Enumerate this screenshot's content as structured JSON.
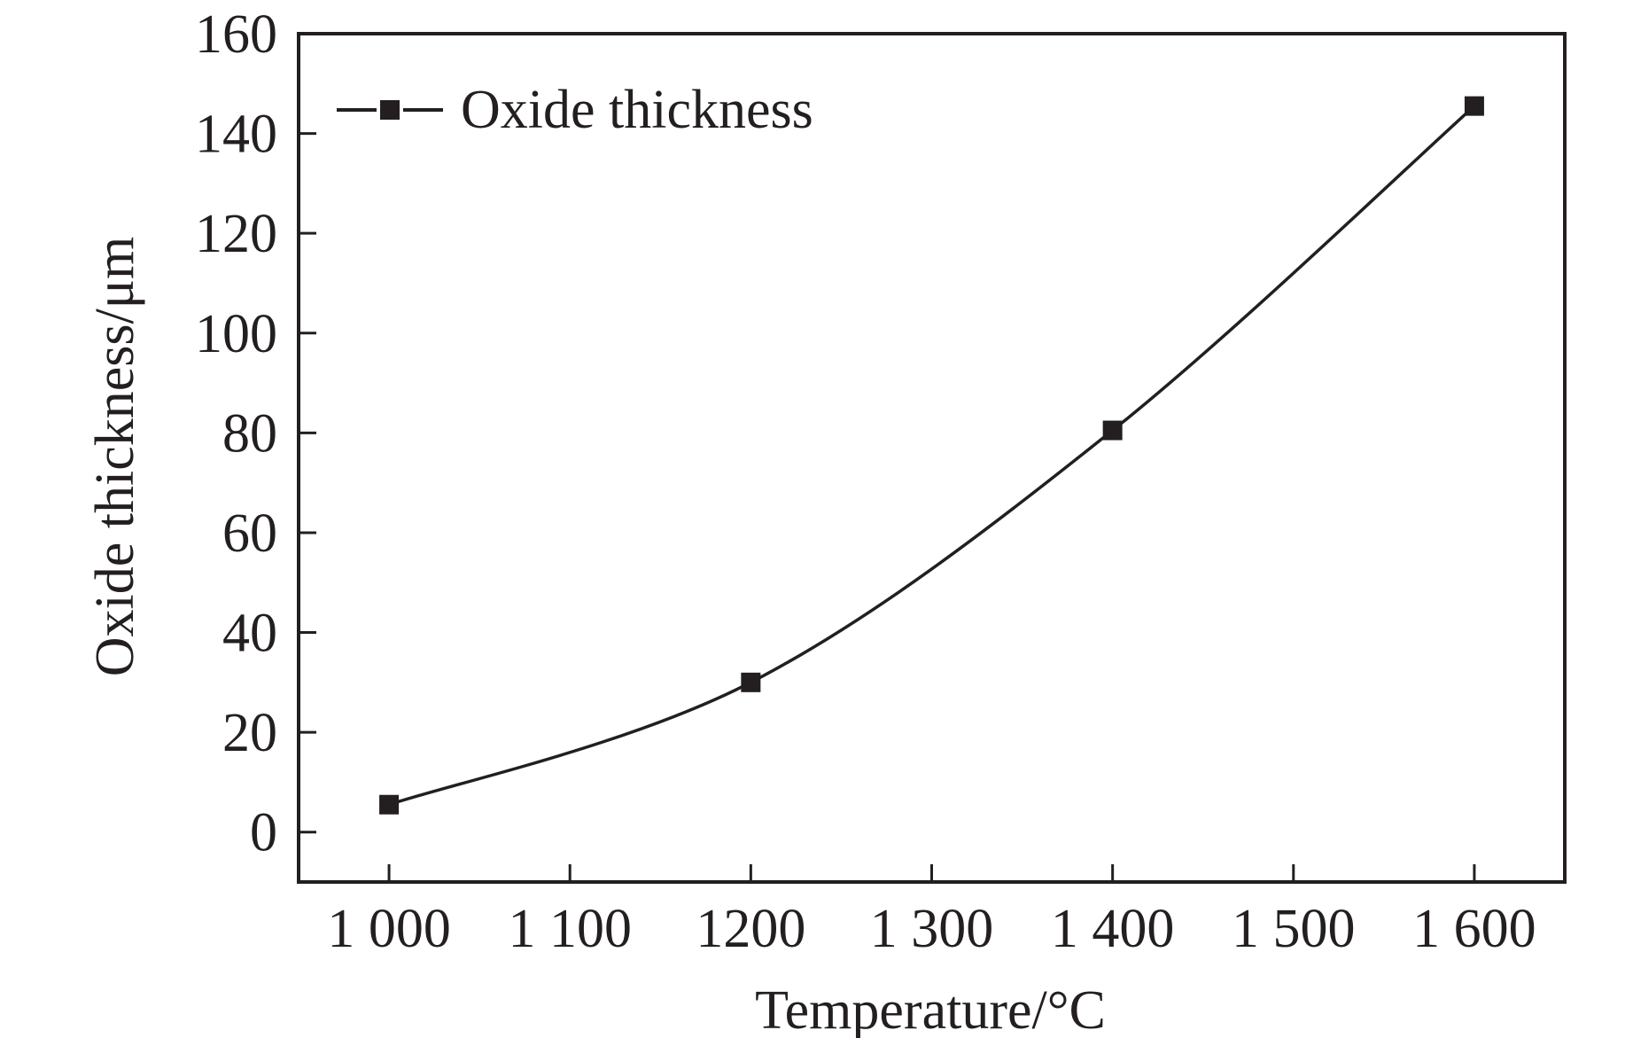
{
  "chart_data": {
    "type": "line",
    "xlabel": "Temperature/°C",
    "ylabel": "Oxide thickness/μm",
    "xlim": [
      950,
      1650
    ],
    "ylim": [
      -10,
      160
    ],
    "x_ticks": [
      1000,
      1100,
      1200,
      1300,
      1400,
      1500,
      1600
    ],
    "x_tick_labels": [
      "1 000",
      "1 100",
      "1200",
      "1 300",
      "1 400",
      "1 500",
      "1 600"
    ],
    "y_ticks": [
      0,
      20,
      40,
      60,
      80,
      100,
      120,
      140,
      160
    ],
    "y_tick_labels": [
      "0",
      "20",
      "40",
      "60",
      "80",
      "100",
      "120",
      "140",
      "160"
    ],
    "grid": false,
    "legend_position": "top-left",
    "series": [
      {
        "name": "Oxide thickness",
        "marker": "square",
        "color": "#231f20",
        "x": [
          1000,
          1200,
          1400,
          1600
        ],
        "y": [
          5.5,
          30,
          80.5,
          145.5
        ]
      }
    ]
  }
}
